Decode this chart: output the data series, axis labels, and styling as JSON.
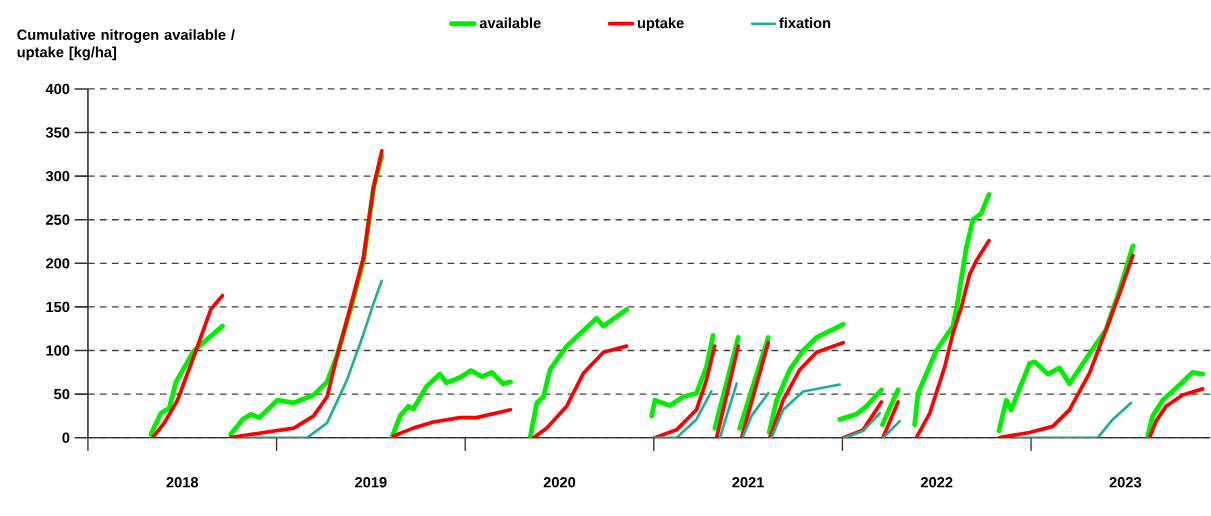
{
  "chart_data": {
    "type": "line",
    "ylabel": "Cumulative nitrogen available / uptake [kg/ha]",
    "xlim": [
      2018,
      2023.95
    ],
    "ylim": [
      0,
      400
    ],
    "yticks": [
      0,
      50,
      100,
      150,
      200,
      250,
      300,
      350,
      400
    ],
    "xticks": [
      {
        "value": 2018,
        "label": null
      },
      {
        "value": 2019,
        "label": null
      },
      {
        "value": 2020,
        "label": null
      },
      {
        "value": 2021,
        "label": null
      },
      {
        "value": 2022,
        "label": null
      },
      {
        "value": 2023,
        "label": null
      },
      {
        "value": 2018.5,
        "label": "2018"
      },
      {
        "value": 2019.5,
        "label": "2019"
      },
      {
        "value": 2020.5,
        "label": "2020"
      },
      {
        "value": 2021.5,
        "label": "2021"
      },
      {
        "value": 2022.5,
        "label": "2022"
      },
      {
        "value": 2023.5,
        "label": "2023"
      }
    ],
    "grid": "y",
    "legend": "top",
    "series": [
      {
        "name": "available",
        "color": "#00ee00",
        "x": [
          2018.334,
          2018.387,
          2018.431,
          2018.467,
          2018.563,
          2018.713,
          null,
          2018.757,
          2018.82,
          2018.863,
          2018.908,
          2019.004,
          2019.092,
          2019.197,
          2019.268,
          2019.32,
          2019.391,
          2019.461,
          2019.514,
          2019.558,
          null,
          2019.611,
          2019.655,
          2019.699,
          2019.725,
          2019.796,
          2019.866,
          2019.901,
          2019.972,
          2020.03,
          2020.09,
          2020.14,
          2020.2,
          2020.24,
          null,
          2020.344,
          2020.38,
          2020.415,
          2020.45,
          2020.538,
          2020.697,
          2020.733,
          2020.856,
          null,
          2020.989,
          2021.006,
          2021.085,
          2021.156,
          2021.226,
          2021.279,
          2021.314,
          null,
          2021.324,
          2021.386,
          2021.448,
          null,
          2021.456,
          2021.607,
          null,
          2021.612,
          2021.651,
          2021.721,
          2021.792,
          2021.863,
          2022.004,
          null,
          2021.986,
          2022.074,
          2022.127,
          2022.207,
          null,
          2022.212,
          2022.295,
          null,
          2022.383,
          2022.401,
          2022.445,
          2022.498,
          2022.586,
          2022.613,
          2022.657,
          2022.692,
          2022.736,
          2022.777,
          null,
          2022.83,
          2022.869,
          2022.895,
          2022.992,
          2023.019,
          2023.089,
          2023.151,
          2023.204,
          2023.328,
          2023.398,
          2023.469,
          2023.54,
          null,
          2023.619,
          2023.645,
          2023.698,
          2023.804,
          2023.857,
          2023.91
        ],
        "values": [
          4,
          28,
          34,
          64,
          100,
          128,
          null,
          4,
          21,
          27,
          23,
          43,
          40,
          49,
          64,
          94,
          146,
          203,
          287,
          323,
          null,
          0,
          25,
          36,
          33,
          59,
          73,
          63,
          69,
          77,
          70,
          75,
          62,
          64,
          null,
          0,
          40,
          47,
          78,
          105,
          137,
          128,
          147,
          null,
          25,
          43,
          37,
          47,
          51,
          81,
          117,
          null,
          11,
          63,
          115,
          null,
          11,
          115,
          null,
          6,
          43,
          78,
          100,
          115,
          130,
          null,
          21,
          27,
          36,
          55,
          null,
          15,
          55,
          null,
          15,
          51,
          73,
          100,
          128,
          158,
          218,
          250,
          257,
          279,
          null,
          8,
          43,
          32,
          85,
          87,
          73,
          80,
          62,
          102,
          124,
          169,
          220,
          null,
          2,
          25,
          43,
          64,
          75,
          73
        ]
      },
      {
        "name": "uptake",
        "color": "#ff0000",
        "x": [
          2018.343,
          2018.405,
          2018.475,
          2018.563,
          2018.651,
          2018.713,
          null,
          2018.757,
          2018.933,
          2019.092,
          2019.197,
          2019.268,
          2019.312,
          2019.373,
          2019.461,
          2019.514,
          2019.558,
          null,
          2019.62,
          2019.725,
          2019.831,
          2019.972,
          2020.06,
          2020.24,
          null,
          2020.362,
          2020.433,
          2020.538,
          2020.627,
          2020.733,
          2020.856,
          null,
          2021.006,
          2021.121,
          2021.226,
          2021.279,
          2021.323,
          null,
          2021.333,
          2021.448,
          null,
          2021.465,
          2021.607,
          null,
          2021.615,
          2021.686,
          2021.774,
          2021.863,
          2022.004,
          null,
          2022.006,
          2022.11,
          2022.207,
          null,
          2022.215,
          2022.295,
          null,
          2022.392,
          2022.463,
          2022.542,
          2022.586,
          2022.631,
          2022.674,
          2022.71,
          2022.777,
          null,
          2022.833,
          2022.992,
          2023.115,
          2023.204,
          2023.31,
          2023.398,
          2023.469,
          2023.54,
          null,
          2023.628,
          2023.663,
          2023.716,
          2023.804,
          2023.91
        ],
        "values": [
          0,
          17,
          43,
          94,
          147,
          163,
          null,
          0,
          6,
          11,
          25,
          47,
          86,
          135,
          207,
          287,
          329,
          null,
          2,
          11,
          18,
          23,
          23,
          32,
          null,
          0,
          11,
          36,
          74,
          98,
          105,
          null,
          0,
          9,
          32,
          66,
          105,
          null,
          0,
          105,
          null,
          0,
          109,
          null,
          0,
          43,
          78,
          98,
          109,
          null,
          0,
          9,
          41,
          null,
          0,
          41,
          null,
          0,
          28,
          81,
          120,
          150,
          187,
          203,
          226,
          null,
          0,
          6,
          13,
          32,
          74,
          124,
          165,
          209,
          null,
          0,
          19,
          36,
          49,
          56
        ]
      },
      {
        "name": "fixation",
        "color": "#20b090",
        "x": [
          2018.827,
          2019.162,
          2019.268,
          2019.373,
          2019.461,
          2019.514,
          2019.558,
          null,
          2021.006,
          2021.121,
          2021.226,
          2021.305,
          null,
          2021.351,
          2021.439,
          null,
          2021.474,
          2021.518,
          2021.607,
          null,
          2021.624,
          2021.686,
          2021.792,
          2021.986,
          null,
          2022.012,
          2022.11,
          2022.198,
          null,
          2022.217,
          2022.304,
          null,
          2022.913,
          2023.354,
          2023.433,
          2023.531
        ],
        "values": [
          0,
          0,
          17,
          66,
          119,
          154,
          180,
          null,
          0,
          0,
          21,
          53,
          null,
          0,
          62,
          null,
          2,
          25,
          51,
          null,
          0,
          32,
          53,
          61,
          null,
          0,
          8,
          28,
          null,
          0,
          19,
          null,
          0,
          0,
          21,
          40
        ]
      }
    ]
  }
}
